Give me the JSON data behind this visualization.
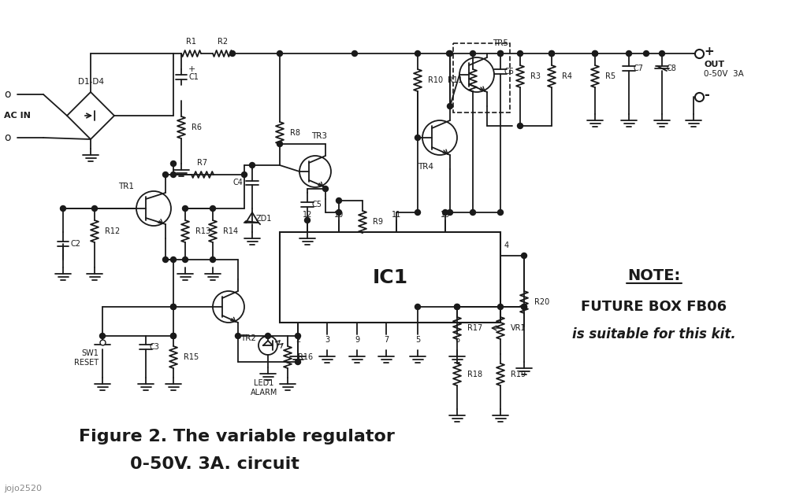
{
  "bg_color": "#ffffff",
  "line_color": "#1a1a1a",
  "title_line1": "Figure 2. The variable regulator",
  "title_line2": "0-50V. 3A. circuit",
  "note_line1": "NOTE:",
  "note_line2": "FUTURE BOX FB06",
  "note_line3": "is suitable for this kit.",
  "watermark": "jojo2520",
  "out_label": "OUT",
  "out_range": "0-50V  3A"
}
